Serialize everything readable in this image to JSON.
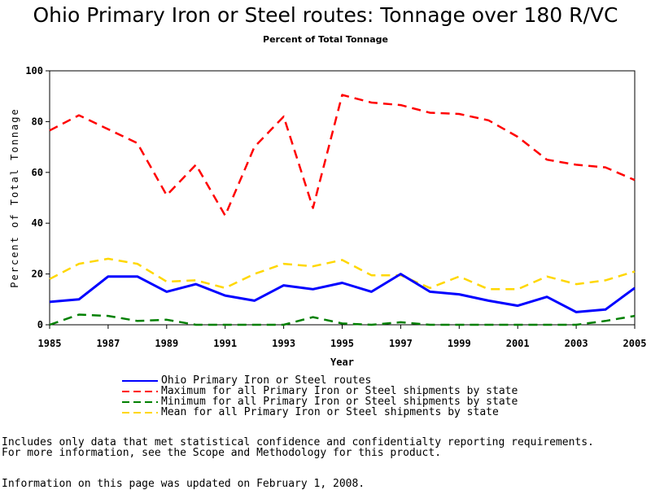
{
  "chart_data": {
    "type": "line",
    "title": "Ohio Primary Iron or Steel routes: Tonnage over 180 R/VC",
    "subtitle": "Percent of Total Tonnage",
    "xlabel": "Year",
    "ylabel": "Percent of Total Tonnage",
    "xlim": [
      1985,
      2005
    ],
    "ylim": [
      0,
      100
    ],
    "x_ticks": [
      "1985",
      "1987",
      "1989",
      "1991",
      "1993",
      "1995",
      "1997",
      "1999",
      "2001",
      "2003",
      "2005"
    ],
    "y_ticks": [
      "0",
      "20",
      "40",
      "60",
      "80",
      "100"
    ],
    "grid": false,
    "legend_placement": "bottom",
    "x": [
      1985,
      1986,
      1987,
      1988,
      1989,
      1990,
      1991,
      1992,
      1993,
      1994,
      1995,
      1996,
      1997,
      1998,
      1999,
      2000,
      2001,
      2002,
      2003,
      2004,
      2005
    ],
    "series": [
      {
        "name": "Ohio Primary Iron or Steel routes",
        "color": "#0000ff",
        "style": "solid",
        "values": [
          9,
          10,
          19,
          19,
          13,
          16,
          11.5,
          9.5,
          15.5,
          14,
          16.5,
          13,
          20,
          13,
          12,
          9.5,
          7.5,
          11,
          5,
          6,
          14.5
        ]
      },
      {
        "name": "Maximum for all Primary Iron or Steel shipments by state",
        "color": "#ff0000",
        "style": "dashed",
        "values": [
          76.5,
          82.5,
          77,
          71.5,
          51,
          63,
          43,
          70,
          82,
          46,
          90.5,
          87.5,
          86.5,
          83.5,
          83,
          80.5,
          74,
          65,
          63,
          62,
          57
        ]
      },
      {
        "name": "Minimum for all Primary Iron or Steel shipments by state",
        "color": "#008000",
        "style": "dashed",
        "values": [
          0,
          4,
          3.5,
          1.5,
          2,
          0,
          0,
          0,
          0,
          3,
          0.5,
          0,
          1,
          0,
          0,
          0,
          0,
          0,
          0,
          1.5,
          3.5
        ]
      },
      {
        "name": "Mean for all Primary Iron or Steel shipments by state",
        "color": "#ffd700",
        "style": "dashed",
        "values": [
          18,
          24,
          26,
          24,
          17,
          17.5,
          14.5,
          20,
          24,
          23,
          25.5,
          19.5,
          19.5,
          14.5,
          19,
          14,
          14,
          19,
          16,
          17.5,
          21
        ]
      }
    ]
  },
  "notes": {
    "line1": "Includes only data that met statistical confidence and confidentialty reporting requirements.",
    "line2": "For more information, see the Scope and Methodology for this product.",
    "updated": "Information on this page was updated on February 1, 2008."
  }
}
